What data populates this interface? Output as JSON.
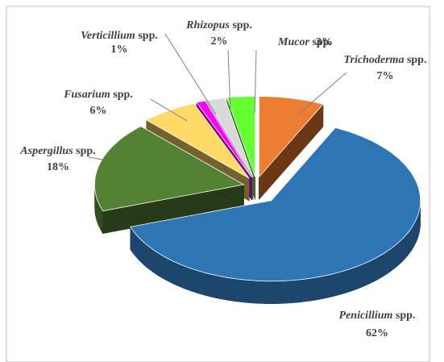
{
  "chart_data": {
    "type": "pie",
    "three_d": true,
    "categories": [
      "Trichoderma",
      "Penicillium",
      "Aspergillus",
      "Fusarium",
      "Verticillium",
      "Rhizopus",
      "Mucor"
    ],
    "suffix": "spp.",
    "values": [
      7,
      62,
      18,
      6,
      1,
      2,
      3
    ],
    "value_labels": [
      "7%",
      "62%",
      "18%",
      "6%",
      "1%",
      "2%",
      "3%"
    ],
    "colors": [
      "#ed7d31",
      "#2e75b6",
      "#548235",
      "#ffd966",
      "#ff00ff",
      "#d9d9d9",
      "#66ff33"
    ]
  }
}
